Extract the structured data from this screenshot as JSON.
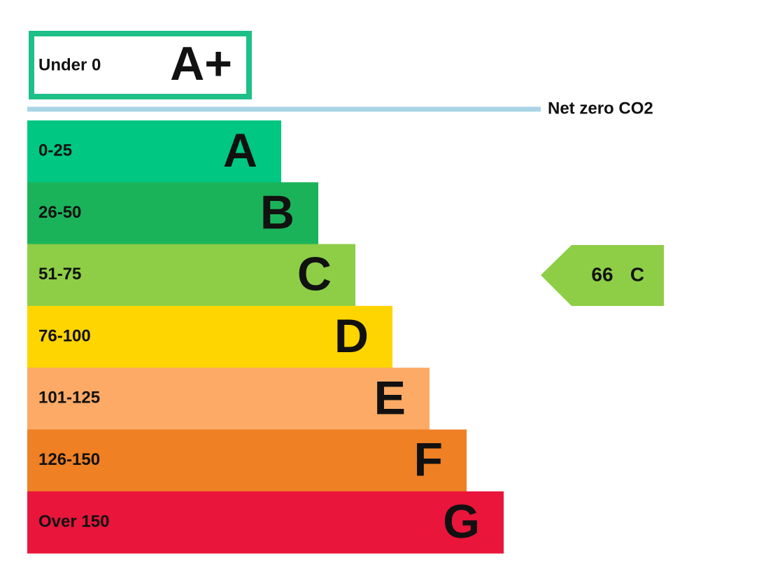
{
  "top_band": {
    "range": "Under 0",
    "letter": "A+",
    "color": "#1ec087"
  },
  "net_zero_label": "Net zero CO2",
  "bands": [
    {
      "range": "0-25",
      "letter": "A",
      "color": "#00c781"
    },
    {
      "range": "26-50",
      "letter": "B",
      "color": "#1bb35a"
    },
    {
      "range": "51-75",
      "letter": "C",
      "color": "#8dce46"
    },
    {
      "range": "76-100",
      "letter": "D",
      "color": "#ffd500"
    },
    {
      "range": "101-125",
      "letter": "E",
      "color": "#fcaa65"
    },
    {
      "range": "126-150",
      "letter": "F",
      "color": "#ef8023"
    },
    {
      "range": "Over 150",
      "letter": "G",
      "color": "#e9153b"
    }
  ],
  "current": {
    "score": 66,
    "letter": "C",
    "color": "#8dce46"
  }
}
